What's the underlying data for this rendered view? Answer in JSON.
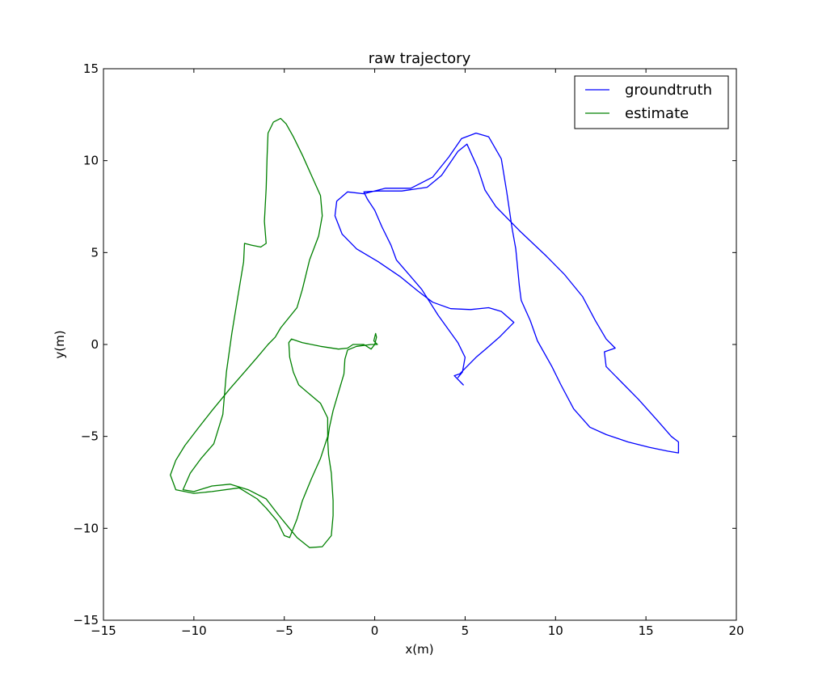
{
  "chart_data": {
    "type": "line",
    "title": "raw trajectory",
    "xlabel": "x(m)",
    "ylabel": "y(m)",
    "xlim": [
      -15,
      20
    ],
    "ylim": [
      -15,
      15
    ],
    "xticks": [
      -15,
      -10,
      -5,
      0,
      5,
      10,
      15,
      20
    ],
    "yticks": [
      -15,
      -10,
      -5,
      0,
      5,
      10,
      15
    ],
    "xtick_labels": [
      "−15",
      "−10",
      "−5",
      "0",
      "5",
      "10",
      "15",
      "20"
    ],
    "ytick_labels": [
      "−15",
      "−10",
      "−5",
      "0",
      "5",
      "10",
      "15"
    ],
    "grid": false,
    "legend_position": "top-right",
    "series": [
      {
        "name": "groundtruth",
        "color": "#0000ff",
        "points": [
          [
            4.6,
            -1.8
          ],
          [
            4.85,
            -1.5
          ],
          [
            5.0,
            -0.7
          ],
          [
            4.6,
            0.1
          ],
          [
            3.5,
            1.6
          ],
          [
            2.6,
            3.0
          ],
          [
            1.2,
            4.6
          ],
          [
            0.9,
            5.4
          ],
          [
            0.4,
            6.4
          ],
          [
            0.0,
            7.3
          ],
          [
            -0.4,
            7.9
          ],
          [
            -0.6,
            8.3
          ],
          [
            0.2,
            8.35
          ],
          [
            1.5,
            8.35
          ],
          [
            2.9,
            8.55
          ],
          [
            3.7,
            9.2
          ],
          [
            4.6,
            10.5
          ],
          [
            5.1,
            10.9
          ],
          [
            5.7,
            9.6
          ],
          [
            6.1,
            8.4
          ],
          [
            6.7,
            7.5
          ],
          [
            8.0,
            6.2
          ],
          [
            9.5,
            4.8
          ],
          [
            10.5,
            3.8
          ],
          [
            11.5,
            2.6
          ],
          [
            12.2,
            1.3
          ],
          [
            12.8,
            0.3
          ],
          [
            13.3,
            -0.2
          ],
          [
            12.7,
            -0.4
          ],
          [
            12.8,
            -1.2
          ],
          [
            13.6,
            -2.0
          ],
          [
            14.6,
            -3.0
          ],
          [
            15.6,
            -4.1
          ],
          [
            16.4,
            -5.0
          ],
          [
            16.8,
            -5.3
          ],
          [
            16.8,
            -5.9
          ],
          [
            16.2,
            -5.8
          ],
          [
            15.2,
            -5.6
          ],
          [
            14.0,
            -5.3
          ],
          [
            12.8,
            -4.9
          ],
          [
            11.9,
            -4.5
          ],
          [
            11.0,
            -3.5
          ],
          [
            10.3,
            -2.2
          ],
          [
            9.8,
            -1.2
          ],
          [
            9.0,
            0.2
          ],
          [
            8.6,
            1.3
          ],
          [
            8.1,
            2.4
          ],
          [
            8.0,
            3.2
          ],
          [
            7.8,
            5.2
          ],
          [
            7.6,
            6.3
          ],
          [
            7.3,
            8.3
          ],
          [
            7.0,
            10.1
          ],
          [
            6.3,
            11.3
          ],
          [
            5.6,
            11.5
          ],
          [
            4.8,
            11.2
          ],
          [
            4.1,
            10.2
          ],
          [
            3.2,
            9.1
          ],
          [
            2.0,
            8.5
          ],
          [
            0.6,
            8.5
          ],
          [
            -0.6,
            8.2
          ],
          [
            -1.5,
            8.3
          ],
          [
            -2.1,
            7.8
          ],
          [
            -2.2,
            7.0
          ],
          [
            -1.8,
            6.0
          ],
          [
            -1.0,
            5.2
          ],
          [
            0.2,
            4.5
          ],
          [
            1.4,
            3.7
          ],
          [
            2.4,
            2.9
          ],
          [
            3.2,
            2.3
          ],
          [
            4.2,
            1.95
          ],
          [
            5.3,
            1.9
          ],
          [
            6.3,
            2.0
          ],
          [
            7.0,
            1.8
          ],
          [
            7.7,
            1.2
          ],
          [
            6.9,
            0.4
          ],
          [
            6.2,
            -0.2
          ],
          [
            5.6,
            -0.7
          ],
          [
            5.0,
            -1.3
          ],
          [
            4.7,
            -1.6
          ],
          [
            4.4,
            -1.7
          ],
          [
            4.9,
            -2.2
          ]
        ]
      },
      {
        "name": "estimate",
        "color": "#008000",
        "points": [
          [
            0.1,
            0.0
          ],
          [
            -0.2,
            0.0
          ],
          [
            -1.0,
            -0.1
          ],
          [
            -1.5,
            -0.3
          ],
          [
            -1.65,
            -0.8
          ],
          [
            -1.7,
            -1.6
          ],
          [
            -2.0,
            -2.6
          ],
          [
            -2.3,
            -3.6
          ],
          [
            -2.5,
            -4.5
          ],
          [
            -2.6,
            -5.2
          ],
          [
            -2.55,
            -6.0
          ],
          [
            -2.4,
            -7.0
          ],
          [
            -2.3,
            -8.5
          ],
          [
            -2.3,
            -9.3
          ],
          [
            -2.4,
            -10.4
          ],
          [
            -2.9,
            -11.0
          ],
          [
            -3.6,
            -11.05
          ],
          [
            -4.3,
            -10.5
          ],
          [
            -4.8,
            -9.9
          ],
          [
            -5.3,
            -9.3
          ],
          [
            -6.0,
            -8.4
          ],
          [
            -7.0,
            -7.9
          ],
          [
            -8.0,
            -7.6
          ],
          [
            -9.0,
            -7.7
          ],
          [
            -10.0,
            -8.0
          ],
          [
            -10.6,
            -7.9
          ],
          [
            -10.2,
            -7.0
          ],
          [
            -9.6,
            -6.2
          ],
          [
            -8.9,
            -5.4
          ],
          [
            -8.4,
            -3.8
          ],
          [
            -8.2,
            -1.5
          ],
          [
            -7.9,
            0.6
          ],
          [
            -7.6,
            2.4
          ],
          [
            -7.25,
            4.5
          ],
          [
            -7.2,
            5.5
          ],
          [
            -6.8,
            5.4
          ],
          [
            -6.3,
            5.3
          ],
          [
            -6.0,
            5.5
          ],
          [
            -6.1,
            6.7
          ],
          [
            -6.0,
            8.5
          ],
          [
            -5.95,
            10.3
          ],
          [
            -5.9,
            11.5
          ],
          [
            -5.6,
            12.1
          ],
          [
            -5.2,
            12.3
          ],
          [
            -4.9,
            12.0
          ],
          [
            -4.5,
            11.3
          ],
          [
            -4.0,
            10.3
          ],
          [
            -3.5,
            9.2
          ],
          [
            -3.0,
            8.1
          ],
          [
            -2.9,
            7.0
          ],
          [
            -3.1,
            5.9
          ],
          [
            -3.6,
            4.6
          ],
          [
            -4.0,
            3.0
          ],
          [
            -4.3,
            2.0
          ],
          [
            -5.2,
            0.9
          ],
          [
            -5.5,
            0.4
          ],
          [
            -5.9,
            0.0
          ],
          [
            -6.5,
            -0.7
          ],
          [
            -7.2,
            -1.5
          ],
          [
            -8.0,
            -2.4
          ],
          [
            -9.0,
            -3.6
          ],
          [
            -9.8,
            -4.6
          ],
          [
            -10.5,
            -5.5
          ],
          [
            -11.0,
            -6.3
          ],
          [
            -11.3,
            -7.1
          ],
          [
            -11.0,
            -7.9
          ],
          [
            -10.0,
            -8.1
          ],
          [
            -9.0,
            -8.0
          ],
          [
            -7.5,
            -7.8
          ],
          [
            -6.5,
            -8.4
          ],
          [
            -6.0,
            -8.9
          ],
          [
            -5.4,
            -9.6
          ],
          [
            -5.0,
            -10.4
          ],
          [
            -4.7,
            -10.5
          ],
          [
            -4.3,
            -9.5
          ],
          [
            -4.0,
            -8.5
          ],
          [
            -3.5,
            -7.3
          ],
          [
            -3.0,
            -6.2
          ],
          [
            -2.6,
            -5.0
          ],
          [
            -2.6,
            -4.0
          ],
          [
            -3.0,
            -3.2
          ],
          [
            -3.6,
            -2.7
          ],
          [
            -4.2,
            -2.2
          ],
          [
            -4.5,
            -1.5
          ],
          [
            -4.7,
            -0.7
          ],
          [
            -4.75,
            0.1
          ],
          [
            -4.6,
            0.3
          ],
          [
            -4.0,
            0.1
          ],
          [
            -3.0,
            -0.1
          ],
          [
            -2.0,
            -0.25
          ],
          [
            -1.5,
            -0.2
          ],
          [
            -1.2,
            0.0
          ],
          [
            -0.6,
            0.0
          ],
          [
            -0.2,
            -0.25
          ],
          [
            0.0,
            0.0
          ],
          [
            0.1,
            0.4
          ],
          [
            0.05,
            0.6
          ],
          [
            -0.05,
            0.2
          ],
          [
            0.15,
            0.0
          ]
        ]
      }
    ]
  }
}
